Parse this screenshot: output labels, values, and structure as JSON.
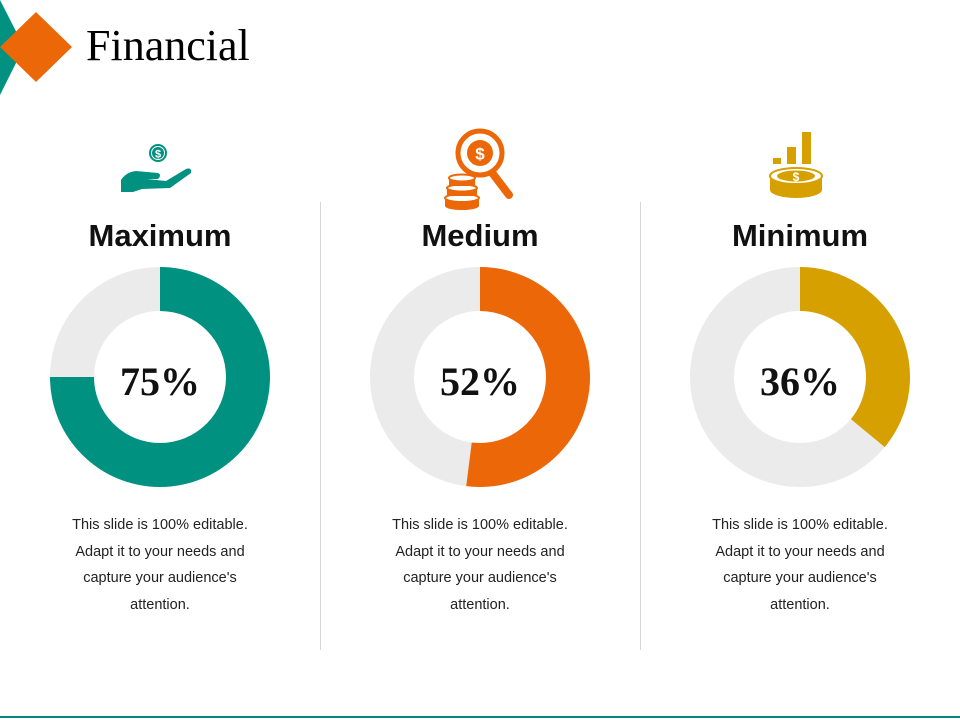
{
  "slide": {
    "title": "Financial"
  },
  "colors": {
    "teal": "#009181",
    "orange": "#ec6707",
    "gold": "#d6a100",
    "track": "#ebebeb"
  },
  "chart_data": [
    {
      "type": "pie",
      "title": "Maximum",
      "values": [
        75,
        25
      ],
      "label": "75%",
      "color": "#009181",
      "icon": "hand-dollar-icon",
      "description": "This slide is 100% editable. Adapt it to your needs and capture your audience's attention."
    },
    {
      "type": "pie",
      "title": "Medium",
      "values": [
        52,
        48
      ],
      "label": "52%",
      "color": "#ec6707",
      "icon": "coins-magnifier-icon",
      "description": "This slide is 100% editable. Adapt it to your needs and capture your audience's attention."
    },
    {
      "type": "pie",
      "title": "Minimum",
      "values": [
        36,
        64
      ],
      "label": "36%",
      "color": "#d6a100",
      "icon": "coins-growth-icon",
      "description": "This slide is 100% editable. Adapt it to your needs and capture your audience's attention."
    }
  ]
}
